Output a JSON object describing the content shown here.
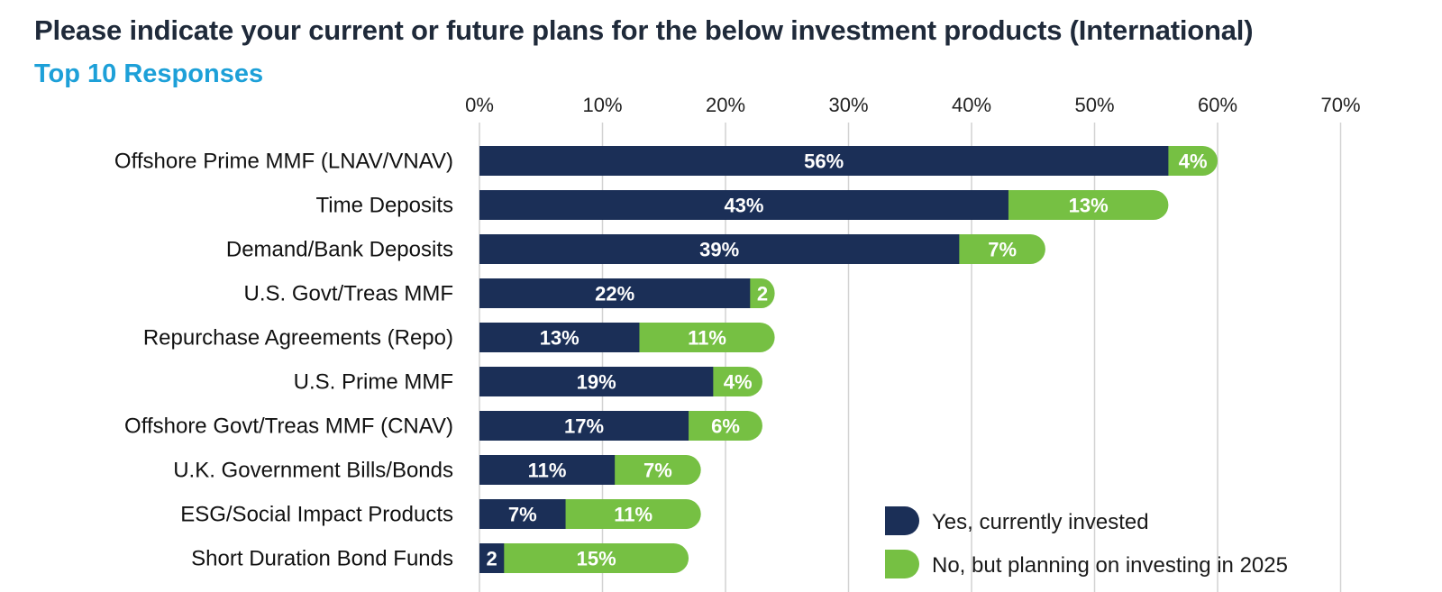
{
  "title": "Please indicate your current or future plans for the below investment products (International)",
  "subtitle": "Top 10 Responses",
  "chart_data": {
    "type": "bar",
    "orientation": "horizontal",
    "stacked": true,
    "categories": [
      "Offshore Prime MMF (LNAV/VNAV)",
      "Time Deposits",
      "Demand/Bank Deposits",
      "U.S. Govt/Treas MMF",
      "Repurchase Agreements (Repo)",
      "U.S. Prime MMF",
      "Offshore Govt/Treas MMF (CNAV)",
      "U.K. Government Bills/Bonds",
      "ESG/Social Impact Products",
      "Short Duration Bond Funds"
    ],
    "series": [
      {
        "name": "Yes, currently invested",
        "color": "#1b2f57",
        "values": [
          56,
          43,
          39,
          22,
          13,
          19,
          17,
          11,
          7,
          2
        ],
        "labels": [
          "56%",
          "43%",
          "39%",
          "22%",
          "13%",
          "19%",
          "17%",
          "11%",
          "7%",
          "2"
        ]
      },
      {
        "name": "No, but planning on investing in 2025",
        "color": "#76c043",
        "values": [
          4,
          13,
          7,
          2,
          11,
          4,
          6,
          7,
          11,
          15
        ],
        "labels": [
          "4%",
          "13%",
          "7%",
          "2",
          "11%",
          "4%",
          "6%",
          "7%",
          "11%",
          "15%"
        ]
      }
    ],
    "xlim": [
      0,
      70
    ],
    "xticks": [
      "0%",
      "10%",
      "20%",
      "30%",
      "40%",
      "50%",
      "60%",
      "70%"
    ],
    "grid": true,
    "legend_position": "bottom-right"
  }
}
